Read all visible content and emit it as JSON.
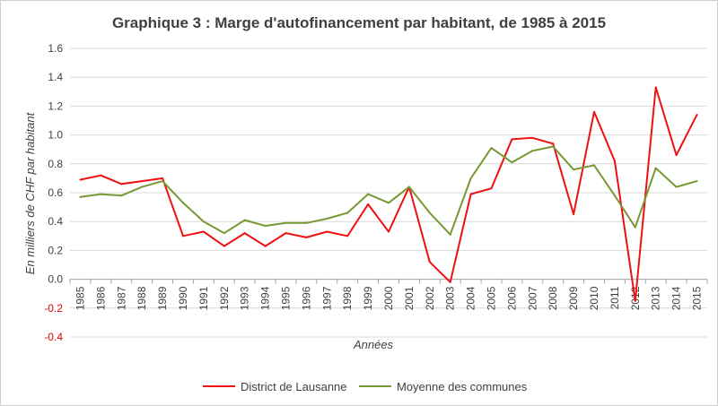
{
  "chart_data": {
    "type": "line",
    "title": "Graphique 3 : Marge d'autofinancement par habitant, de 1985 à 2015",
    "xlabel": "Années",
    "ylabel": "En milliers de CHF par habitant",
    "x": [
      "1985",
      "1986",
      "1987",
      "1988",
      "1989",
      "1990",
      "1991",
      "1992",
      "1993",
      "1994",
      "1995",
      "1996",
      "1997",
      "1998",
      "1999",
      "2000",
      "2001",
      "2002",
      "2003",
      "2004",
      "2005",
      "2006",
      "2007",
      "2008",
      "2009",
      "2010",
      "2011",
      "2012",
      "2013",
      "2014",
      "2015"
    ],
    "ylim": [
      -0.4,
      1.6
    ],
    "yticks": [
      -0.4,
      -0.2,
      0.0,
      0.2,
      0.4,
      0.6,
      0.8,
      1.0,
      1.2,
      1.4,
      1.6
    ],
    "ytick_labels": [
      "-0.4",
      "-0.2",
      "0.0",
      "0.2",
      "0.4",
      "0.6",
      "0.8",
      "1.0",
      "1.2",
      "1.4",
      "1.6"
    ],
    "grid": "horizontal",
    "legend_position": "bottom",
    "series": [
      {
        "name": "District de Lausanne",
        "color": "#ee1111",
        "values": [
          0.69,
          0.72,
          0.66,
          0.68,
          0.7,
          0.3,
          0.33,
          0.23,
          0.32,
          0.23,
          0.32,
          0.29,
          0.33,
          0.3,
          0.52,
          0.33,
          0.64,
          0.12,
          -0.02,
          0.59,
          0.63,
          0.97,
          0.98,
          0.94,
          0.45,
          1.16,
          0.82,
          -0.15,
          1.33,
          0.86,
          1.14
        ]
      },
      {
        "name": "Moyenne des communes",
        "color": "#779933",
        "values": [
          0.57,
          0.59,
          0.58,
          0.64,
          0.68,
          0.53,
          0.4,
          0.32,
          0.41,
          0.37,
          0.39,
          0.39,
          0.42,
          0.46,
          0.59,
          0.53,
          0.64,
          0.46,
          0.31,
          0.7,
          0.91,
          0.81,
          0.89,
          0.92,
          0.76,
          0.79,
          0.58,
          0.36,
          0.77,
          0.64,
          0.68
        ]
      }
    ]
  }
}
